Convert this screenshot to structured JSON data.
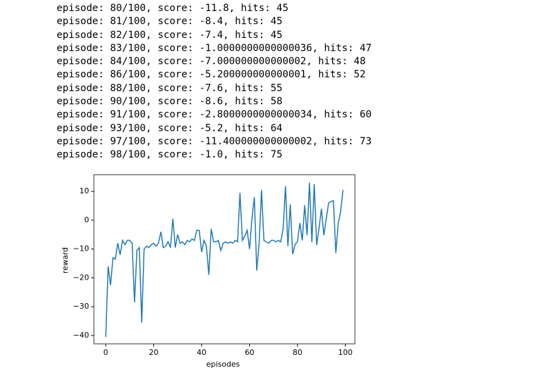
{
  "log": [
    "episode: 80/100, score: -11.8, hits: 45",
    "episode: 81/100, score: -8.4, hits: 45",
    "episode: 82/100, score: -7.4, hits: 45",
    "episode: 83/100, score: -1.0000000000000036, hits: 47",
    "episode: 84/100, score: -7.000000000000002, hits: 48",
    "episode: 86/100, score: -5.200000000000001, hits: 52",
    "episode: 88/100, score: -7.6, hits: 55",
    "episode: 90/100, score: -8.6, hits: 58",
    "episode: 91/100, score: -2.8000000000000034, hits: 60",
    "episode: 93/100, score: -5.2, hits: 64",
    "episode: 97/100, score: -11.400000000000002, hits: 73",
    "episode: 98/100, score: -1.0, hits: 75"
  ],
  "chart_data": {
    "type": "line",
    "x_label": "episodes",
    "y_label": "reward",
    "x": [
      0,
      1,
      2,
      3,
      4,
      5,
      6,
      7,
      8,
      9,
      10,
      11,
      12,
      13,
      14,
      15,
      16,
      17,
      18,
      19,
      20,
      21,
      22,
      23,
      24,
      25,
      26,
      27,
      28,
      29,
      30,
      31,
      32,
      33,
      34,
      35,
      36,
      37,
      38,
      39,
      40,
      41,
      42,
      43,
      44,
      45,
      46,
      47,
      48,
      49,
      50,
      51,
      52,
      53,
      54,
      55,
      56,
      57,
      58,
      59,
      60,
      61,
      62,
      63,
      64,
      65,
      66,
      67,
      68,
      69,
      70,
      71,
      72,
      73,
      74,
      75,
      76,
      77,
      78,
      79,
      80,
      81,
      82,
      83,
      84,
      85,
      86,
      87,
      88,
      89,
      90,
      91,
      92,
      93,
      94,
      95,
      96,
      97,
      98,
      99
    ],
    "series": [
      {
        "color": "#1f77b4",
        "values": [
          -40.5,
          -16,
          -22.5,
          -13,
          -13.5,
          -8,
          -12,
          -7,
          -8.5,
          -7,
          -7,
          -8,
          -28.5,
          -10.5,
          -9.5,
          -35.5,
          -10,
          -9,
          -9.5,
          -8.5,
          -8,
          -9,
          -8,
          -4,
          -9.5,
          -9,
          -7.5,
          -9.5,
          0.5,
          -9.5,
          -5,
          -8,
          -7.5,
          -8.5,
          -7,
          -7.5,
          -6.5,
          -7,
          -3.5,
          -3.5,
          -11,
          -7,
          -9,
          -19,
          -3,
          -7.5,
          -7.5,
          -7,
          -10.5,
          -8,
          -7.5,
          -8,
          -7.5,
          -8,
          -7,
          -7.5,
          9.5,
          -7,
          -5.5,
          -3.5,
          -10,
          0.5,
          8,
          -17.5,
          -8,
          10.5,
          -7,
          -7.5,
          -8,
          -7,
          -7,
          -7.5,
          -7,
          -7.5,
          -3,
          11.8,
          -9,
          5.5,
          -11.8,
          -8.4,
          -7.4,
          -1,
          -7,
          5.2,
          -5.2,
          13,
          -7.6,
          12.5,
          -8.6,
          -2.8,
          4,
          -5.2,
          0.5,
          6,
          6.5,
          6.8,
          -11.4,
          -1,
          3,
          10.5
        ]
      }
    ],
    "xlim": [
      -4.95,
      103.95
    ],
    "ylim": [
      -42.9,
      15.8
    ],
    "xticks": [
      0,
      20,
      40,
      60,
      80,
      100
    ],
    "yticks": [
      {
        "value": -40,
        "label": "−40"
      },
      {
        "value": -30,
        "label": "−30"
      },
      {
        "value": -20,
        "label": "−20"
      },
      {
        "value": -10,
        "label": "−10"
      },
      0,
      10
    ]
  }
}
